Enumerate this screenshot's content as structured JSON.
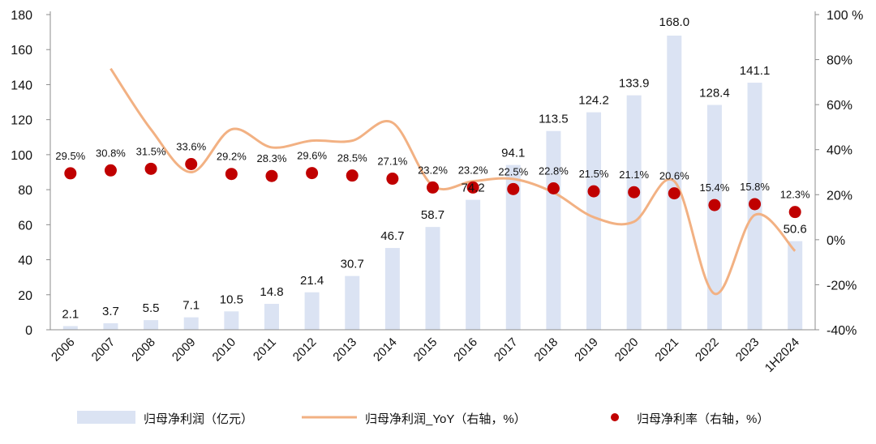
{
  "chart_data": {
    "type": "bar",
    "title": "",
    "categories": [
      "2006",
      "2007",
      "2008",
      "2009",
      "2010",
      "2011",
      "2012",
      "2013",
      "2014",
      "2015",
      "2016",
      "2017",
      "2018",
      "2019",
      "2020",
      "2021",
      "2022",
      "2023",
      "1H2024"
    ],
    "series": [
      {
        "name": "归母净利润（亿元）",
        "type": "bar",
        "axis": "left",
        "color": "#dbe3f3",
        "values": [
          2.1,
          3.7,
          5.5,
          7.1,
          10.5,
          14.8,
          21.4,
          30.7,
          46.7,
          58.7,
          74.2,
          94.1,
          113.5,
          124.2,
          133.9,
          168.0,
          128.4,
          141.1,
          50.6
        ],
        "labels": [
          "2.1",
          "3.7",
          "5.5",
          "7.1",
          "10.5",
          "14.8",
          "21.4",
          "30.7",
          "46.7",
          "58.7",
          "74.2",
          "94.1",
          "113.5",
          "124.2",
          "133.9",
          "168.0",
          "128.4",
          "141.1",
          "50.6"
        ]
      },
      {
        "name": "归母净利润_YoY（右轴，%）",
        "type": "line",
        "axis": "right",
        "color": "#f2b183",
        "values": [
          null,
          76,
          49,
          30,
          49,
          41,
          44,
          44,
          52,
          24,
          26,
          27,
          21,
          10,
          8,
          26,
          -24,
          11,
          -5
        ]
      },
      {
        "name": "归母净利率（右轴，%）",
        "type": "scatter",
        "axis": "right",
        "color": "#c00000",
        "values": [
          29.5,
          30.8,
          31.5,
          33.6,
          29.2,
          28.3,
          29.6,
          28.5,
          27.1,
          23.2,
          23.2,
          22.5,
          22.8,
          21.5,
          21.1,
          20.6,
          15.4,
          15.8,
          12.3
        ],
        "labels": [
          "29.5%",
          "30.8%",
          "31.5%",
          "33.6%",
          "29.2%",
          "28.3%",
          "29.6%",
          "28.5%",
          "27.1%",
          "23.2%",
          "23.2%",
          "22.5%",
          "22.8%",
          "21.5%",
          "21.1%",
          "20.6%",
          "15.4%",
          "15.8%",
          "12.3%"
        ]
      }
    ],
    "left_axis": {
      "ylim": [
        0,
        180
      ],
      "ticks": [
        "0",
        "20",
        "40",
        "60",
        "80",
        "100",
        "120",
        "140",
        "160",
        "180"
      ]
    },
    "right_axis": {
      "ylim": [
        -40,
        100
      ],
      "ticks": [
        "-40%",
        "-20%",
        "0%",
        "20%",
        "40%",
        "60%",
        "80%",
        "100 %"
      ]
    },
    "grid": false,
    "legend_position": "bottom",
    "legend": [
      "归母净利润（亿元）",
      "归母净利润_YoY（右轴，%）",
      "归母净利率（右轴，%）"
    ]
  }
}
